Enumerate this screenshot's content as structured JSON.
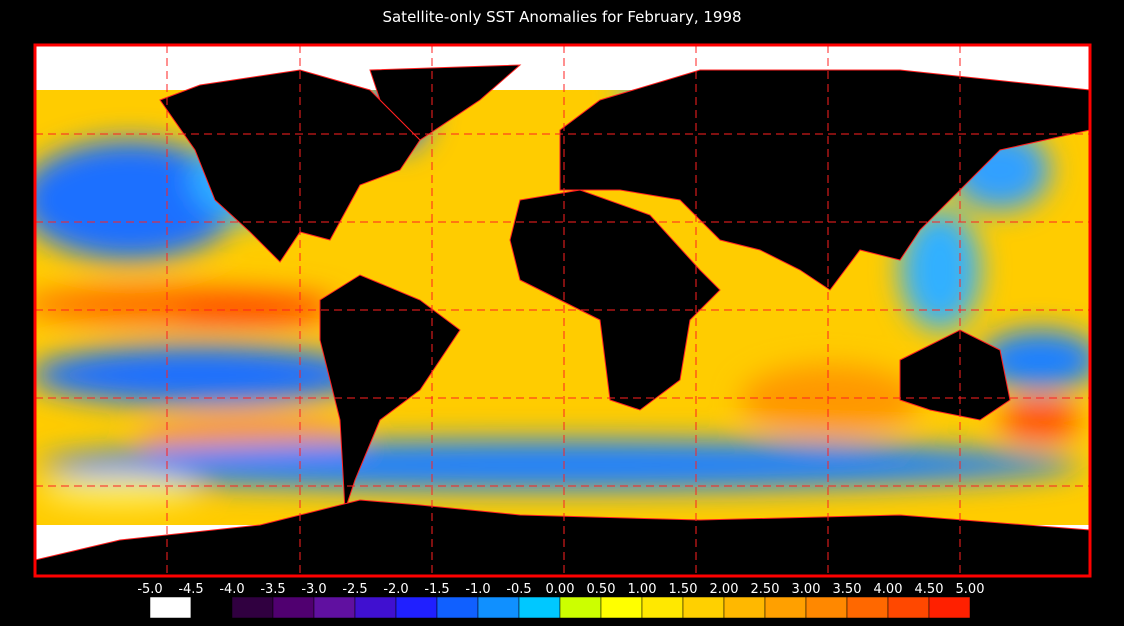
{
  "title": "Satellite-only SST Anomalies for February, 1998",
  "colorbar": {
    "ticks": [
      {
        "value": -5,
        "label": "-5.0"
      },
      {
        "value": -4.5,
        "label": "-4.5"
      },
      {
        "value": -4,
        "label": "-4.0"
      },
      {
        "value": -3.5,
        "label": "-3.5"
      },
      {
        "value": -3,
        "label": "-3.0"
      },
      {
        "value": -2.5,
        "label": "-2.5"
      },
      {
        "value": -2,
        "label": "-2.0"
      },
      {
        "value": -1.5,
        "label": "-1.5"
      },
      {
        "value": -1,
        "label": "-1.0"
      },
      {
        "value": -0.5,
        "label": "-0.5"
      },
      {
        "value": 0,
        "label": "0.00"
      },
      {
        "value": 0.5,
        "label": "0.50"
      },
      {
        "value": 1,
        "label": "1.00"
      },
      {
        "value": 1.5,
        "label": "1.50"
      },
      {
        "value": 2,
        "label": "2.00"
      },
      {
        "value": 2.5,
        "label": "2.50"
      },
      {
        "value": 3,
        "label": "3.00"
      },
      {
        "value": 3.5,
        "label": "3.50"
      },
      {
        "value": 4,
        "label": "4.00"
      },
      {
        "value": 4.5,
        "label": "4.50"
      },
      {
        "value": 5,
        "label": "5.00"
      }
    ],
    "colors": [
      "#ffffff",
      "#000000",
      "#300040",
      "#500070",
      "#6010a0",
      "#4010d0",
      "#2020ff",
      "#1060ff",
      "#1090ff",
      "#00c8ff",
      "#ccff00",
      "#ffff00",
      "#ffe800",
      "#ffd000",
      "#ffb800",
      "#ffa000",
      "#ff8800",
      "#ff6800",
      "#ff4800",
      "#ff2000"
    ]
  }
}
